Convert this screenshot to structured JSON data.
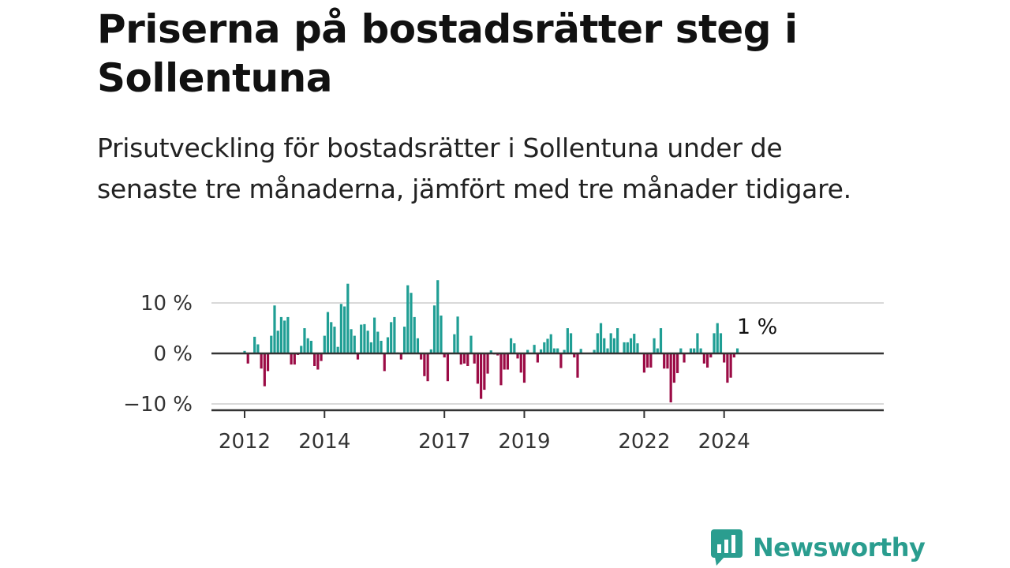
{
  "title": "Priserna på bostadsrätter steg i Sollentuna",
  "subtitle": "Prisutveckling för bostadsrätter i Sollentuna under de senaste tre månaderna, jämfört med tre månader tidigare.",
  "logo_text": "Newsworthy",
  "colors": {
    "positive": "#1f9e94",
    "negative": "#9b0b45",
    "grid": "#d9d9d9",
    "zero_line": "#333333",
    "logo": "#2a9d8f"
  },
  "chart_data": {
    "type": "bar",
    "x_start": "2012-01",
    "frequency": "monthly",
    "y_ticks": [
      10,
      0,
      -10
    ],
    "y_tick_labels": [
      "10 %",
      "0 %",
      "−10 %"
    ],
    "x_ticks": [
      "2012",
      "2014",
      "2017",
      "2019",
      "2022",
      "2024"
    ],
    "x_tick_months": [
      "2012-01",
      "2014-01",
      "2017-01",
      "2019-01",
      "2022-01",
      "2024-01"
    ],
    "ylim": [
      -11.5,
      15
    ],
    "last_value_label": "1 %",
    "values": [
      0.5,
      -2,
      0,
      3.3,
      1.8,
      -3,
      -6.5,
      -3.5,
      3.5,
      9.5,
      4.5,
      7.2,
      6.5,
      7.2,
      -2.2,
      -2.2,
      -0.3,
      1.5,
      5,
      3,
      2.5,
      -2.5,
      -3.2,
      -1.5,
      3.5,
      8.2,
      6.2,
      5.3,
      1.3,
      9.8,
      9.3,
      13.8,
      4.8,
      3.5,
      -1.2,
      5.7,
      5.8,
      4.5,
      2.2,
      7.1,
      4.3,
      2.5,
      -3.5,
      3.2,
      6.2,
      7.2,
      0.2,
      -1.2,
      5.3,
      13.5,
      12,
      7.2,
      3,
      -1.2,
      -4.5,
      -5.5,
      0.8,
      9.5,
      14.5,
      7.5,
      -0.8,
      -5.5,
      0.1,
      3.8,
      7.3,
      -2.2,
      -2,
      -2.5,
      3.5,
      -2,
      -6,
      -9,
      -7.2,
      -4,
      0.6,
      -0.2,
      -0.4,
      -6.3,
      -3.2,
      -3.2,
      3,
      2,
      -1,
      -3.8,
      -5.8,
      0.7,
      0,
      1.7,
      -1.8,
      0.8,
      2.2,
      2.9,
      3.8,
      1,
      1,
      -2.9,
      0.7,
      5,
      4,
      -0.8,
      -4.8,
      0.9,
      0,
      0,
      0,
      0.7,
      4,
      6,
      3,
      1,
      4,
      3,
      5,
      0.1,
      2.2,
      2.2,
      3,
      3.9,
      2,
      0,
      -3.8,
      -2.8,
      -2.8,
      3,
      1,
      5,
      -3,
      -3,
      -9.7,
      -5.8,
      -3.9,
      1,
      -1.8,
      0,
      1,
      1,
      4,
      1,
      -2,
      -2.8,
      -0.8,
      4,
      6,
      4,
      -1.8,
      -5.8,
      -4.8,
      -0.8,
      1
    ]
  }
}
